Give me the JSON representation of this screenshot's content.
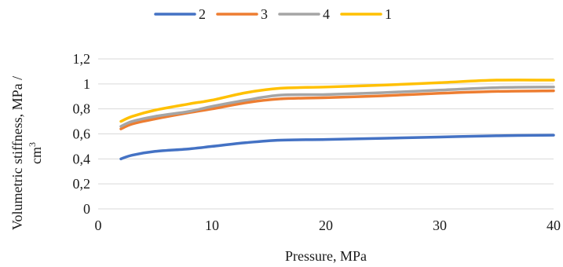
{
  "chart_data": {
    "type": "line",
    "xlabel": "Pressure, MPa",
    "ylabel_line1": "Volumetric stiffness, MPa /",
    "ylabel_line2_base": "cm",
    "ylabel_line2_sup": "3",
    "xlim": [
      0,
      40
    ],
    "ylim": [
      0,
      1.2
    ],
    "xticks": [
      0,
      10,
      20,
      30,
      40
    ],
    "xtick_labels": [
      "0",
      "10",
      "20",
      "30",
      "40"
    ],
    "yticks": [
      0,
      0.2,
      0.4,
      0.6,
      0.8,
      1.0,
      1.2
    ],
    "ytick_labels": [
      "0",
      "0,2",
      "0,4",
      "0,6",
      "0,8",
      "1",
      "1,2"
    ],
    "grid": "horizontal",
    "legend_position": "top",
    "series": [
      {
        "name": "2",
        "color": "#4472C4",
        "points": [
          [
            2,
            0.4
          ],
          [
            3,
            0.43
          ],
          [
            5,
            0.46
          ],
          [
            8,
            0.48
          ],
          [
            10,
            0.5
          ],
          [
            13,
            0.53
          ],
          [
            16,
            0.55
          ],
          [
            20,
            0.555
          ],
          [
            25,
            0.565
          ],
          [
            30,
            0.575
          ],
          [
            35,
            0.585
          ],
          [
            40,
            0.59
          ]
        ]
      },
      {
        "name": "3",
        "color": "#ED7D31",
        "points": [
          [
            2,
            0.64
          ],
          [
            3,
            0.68
          ],
          [
            5,
            0.72
          ],
          [
            8,
            0.77
          ],
          [
            10,
            0.8
          ],
          [
            13,
            0.85
          ],
          [
            16,
            0.88
          ],
          [
            20,
            0.89
          ],
          [
            25,
            0.905
          ],
          [
            30,
            0.925
          ],
          [
            35,
            0.94
          ],
          [
            40,
            0.945
          ]
        ]
      },
      {
        "name": "4",
        "color": "#A5A5A5",
        "points": [
          [
            2,
            0.66
          ],
          [
            3,
            0.7
          ],
          [
            5,
            0.74
          ],
          [
            8,
            0.78
          ],
          [
            10,
            0.82
          ],
          [
            13,
            0.87
          ],
          [
            16,
            0.91
          ],
          [
            20,
            0.915
          ],
          [
            25,
            0.93
          ],
          [
            30,
            0.95
          ],
          [
            35,
            0.97
          ],
          [
            40,
            0.975
          ]
        ]
      },
      {
        "name": "1",
        "color": "#FFC000",
        "points": [
          [
            2,
            0.7
          ],
          [
            3,
            0.74
          ],
          [
            5,
            0.79
          ],
          [
            8,
            0.84
          ],
          [
            10,
            0.87
          ],
          [
            13,
            0.93
          ],
          [
            16,
            0.965
          ],
          [
            20,
            0.975
          ],
          [
            25,
            0.99
          ],
          [
            30,
            1.01
          ],
          [
            35,
            1.03
          ],
          [
            40,
            1.03
          ]
        ]
      }
    ]
  }
}
